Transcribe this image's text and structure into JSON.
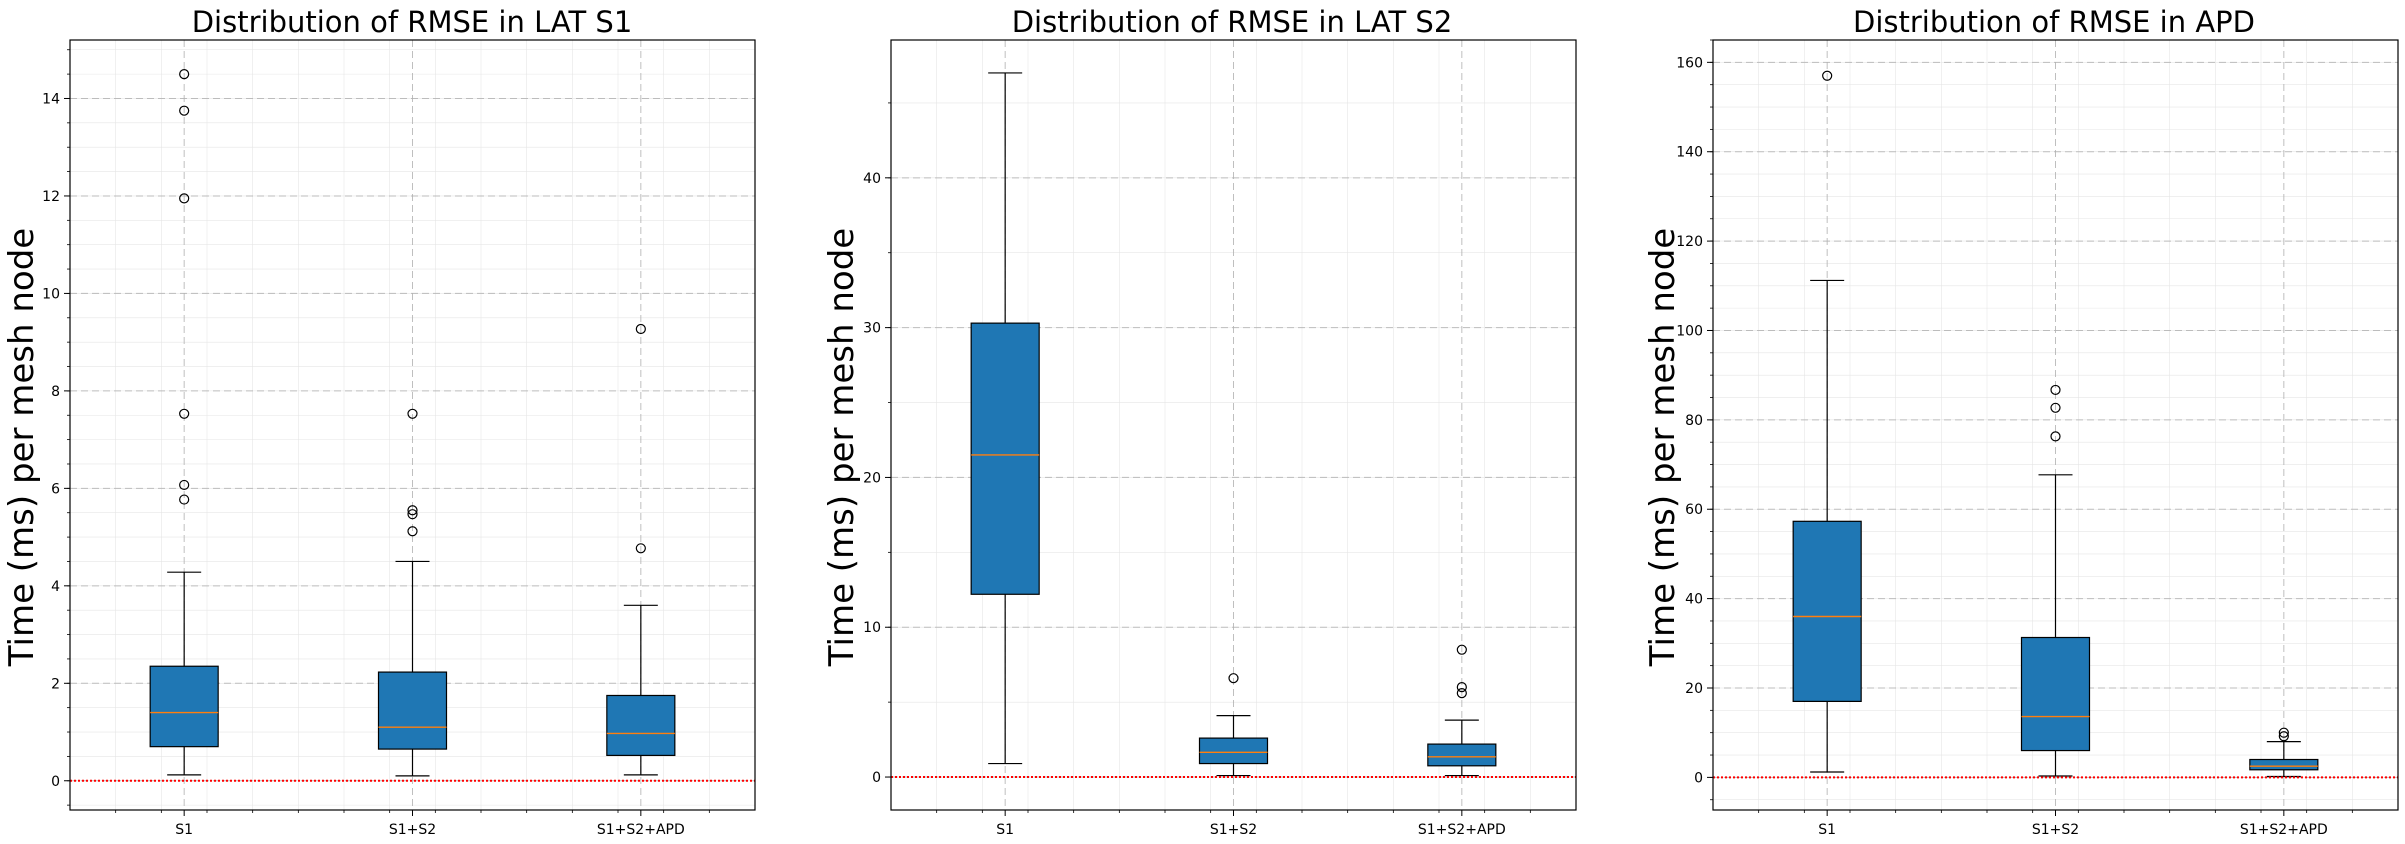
{
  "figure": {
    "background": "#ffffff",
    "box_fill": "#1f77b4",
    "median_color": "#ff7f0e",
    "zero_line_color": "#ff0000",
    "grid_color": "#b0b0b0"
  },
  "chart_data": [
    {
      "type": "box",
      "title": "Distribution of RMSE in LAT S1",
      "xlabel": "",
      "ylabel": "Time (ms) per mesh node",
      "categories": [
        "S1",
        "S1+S2",
        "S1+S2+APD"
      ],
      "ylim": [
        -0.6,
        15.2
      ],
      "yticks": [
        0,
        2,
        4,
        6,
        8,
        10,
        12,
        14
      ],
      "yminor": 0.5,
      "grid": true,
      "zero_line": 0,
      "boxes": [
        {
          "whisker_low": 0.12,
          "q1": 0.7,
          "median": 1.4,
          "q3": 2.35,
          "whisker_high": 4.28,
          "fliers": [
            5.77,
            6.07,
            7.53,
            11.95,
            13.75,
            14.5
          ]
        },
        {
          "whisker_low": 0.1,
          "q1": 0.65,
          "median": 1.1,
          "q3": 2.23,
          "whisker_high": 4.5,
          "fliers": [
            5.12,
            5.47,
            5.55,
            7.53
          ]
        },
        {
          "whisker_low": 0.12,
          "q1": 0.52,
          "median": 0.97,
          "q3": 1.75,
          "whisker_high": 3.6,
          "fliers": [
            4.77,
            9.27
          ]
        }
      ]
    },
    {
      "type": "box",
      "title": "Distribution of RMSE in LAT S2",
      "xlabel": "",
      "ylabel": "Time (ms) per mesh node",
      "categories": [
        "S1",
        "S1+S2",
        "S1+S2+APD"
      ],
      "ylim": [
        -2.2,
        49.2
      ],
      "yticks": [
        0,
        10,
        20,
        30,
        40
      ],
      "yminor": 5,
      "grid": true,
      "zero_line": 0,
      "boxes": [
        {
          "whisker_low": 0.9,
          "q1": 12.2,
          "median": 21.5,
          "q3": 30.3,
          "whisker_high": 47.0,
          "fliers": []
        },
        {
          "whisker_low": 0.1,
          "q1": 0.9,
          "median": 1.65,
          "q3": 2.6,
          "whisker_high": 4.1,
          "fliers": [
            6.6
          ]
        },
        {
          "whisker_low": 0.1,
          "q1": 0.75,
          "median": 1.35,
          "q3": 2.2,
          "whisker_high": 3.8,
          "fliers": [
            5.6,
            6.0,
            8.5
          ]
        }
      ]
    },
    {
      "type": "box",
      "title": "Distribution of RMSE in APD",
      "xlabel": "",
      "ylabel": "Time (ms) per mesh node",
      "categories": [
        "S1",
        "S1+S2",
        "S1+S2+APD"
      ],
      "ylim": [
        -7.3,
        165
      ],
      "yticks": [
        0,
        20,
        40,
        60,
        80,
        100,
        120,
        140,
        160
      ],
      "yminor": 5,
      "grid": true,
      "zero_line": 0,
      "boxes": [
        {
          "whisker_low": 1.2,
          "q1": 17.0,
          "median": 36.0,
          "q3": 57.3,
          "whisker_high": 111.2,
          "fliers": [
            157.0
          ]
        },
        {
          "whisker_low": 0.3,
          "q1": 6.0,
          "median": 13.6,
          "q3": 31.3,
          "whisker_high": 67.7,
          "fliers": [
            76.3,
            82.7,
            86.7
          ]
        },
        {
          "whisker_low": 0.2,
          "q1": 1.7,
          "median": 2.5,
          "q3": 4.0,
          "whisker_high": 8.0,
          "fliers": [
            9.2,
            10.0
          ]
        }
      ]
    }
  ]
}
